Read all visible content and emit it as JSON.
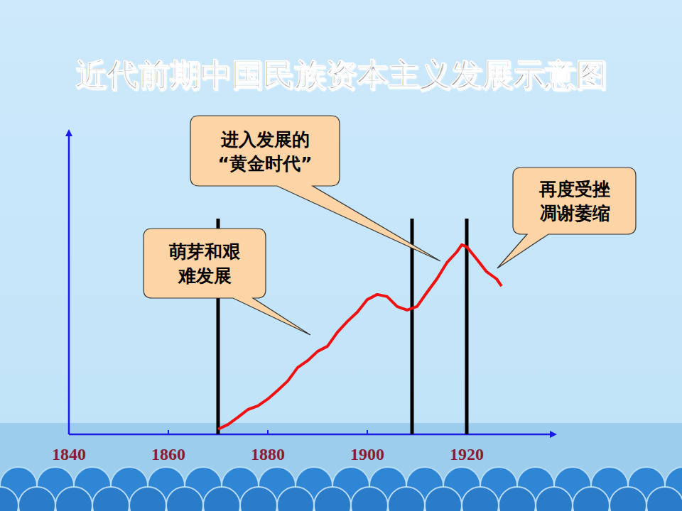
{
  "chart_data": {
    "type": "line",
    "title": "近代前期中国民族资本主义发展示意图",
    "x": [
      1870,
      1872,
      1874,
      1876,
      1878,
      1880,
      1882,
      1884,
      1886,
      1888,
      1890,
      1892,
      1894,
      1896,
      1898,
      1900,
      1902,
      1904,
      1906,
      1908,
      1910,
      1912,
      1914,
      1916,
      1918,
      1919,
      1920,
      1922,
      1924,
      1926,
      1927
    ],
    "series": [
      {
        "color": "#ee1111",
        "line_style": "solid",
        "values": [
          1.7,
          3.3,
          5.7,
          8.3,
          9.5,
          11.8,
          14.7,
          17.8,
          22.3,
          24.6,
          27.7,
          29.4,
          34.1,
          37.7,
          40.8,
          45,
          46.7,
          46,
          42.7,
          41.5,
          42.7,
          47.4,
          51.9,
          57.3,
          60.9,
          63.3,
          62.6,
          58.5,
          54.3,
          51.9,
          49.5
        ]
      }
    ],
    "xlim": [
      1840,
      1937
    ],
    "xticks": [
      1840,
      1860,
      1880,
      1900,
      1920
    ],
    "ylim": [
      0,
      100
    ],
    "tick_labels": "x",
    "grid": false,
    "period_lines": [
      1870,
      1909,
      1920
    ],
    "annotations": [
      {
        "lines": [
          "萌芽和艰",
          "难发展"
        ]
      },
      {
        "lines": [
          "进入发展的",
          "“黄金时代”"
        ]
      },
      {
        "lines": [
          "再度受挫",
          "凋谢萎缩"
        ]
      }
    ]
  }
}
